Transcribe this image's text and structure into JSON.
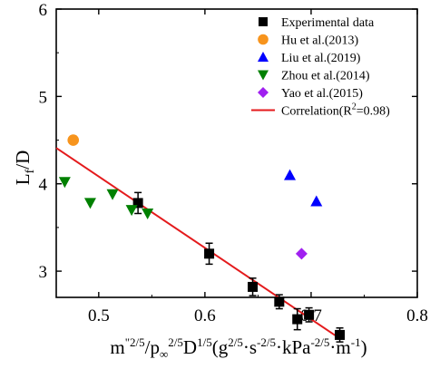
{
  "chart_data": {
    "type": "scatter",
    "xlabel": "m″²ᐟ⁵/p∞²ᐟ⁵D¹ᐟ⁵(g²ᐟ⁵·s⁻²ᐟ⁵·kPa⁻²ᐟ⁵·m⁻¹)",
    "ylabel": "L_f/D",
    "xlim": [
      0.46,
      0.8
    ],
    "ylim": [
      2.7,
      6
    ],
    "x_ticks": [
      "0.5",
      "0.6",
      "0.7",
      "0.8"
    ],
    "x_tick_values": [
      0.5,
      0.6,
      0.7,
      0.8
    ],
    "y_ticks": [
      "3",
      "4",
      "5",
      "6"
    ],
    "y_tick_values": [
      3,
      4,
      5,
      6
    ],
    "legend_position": "top-right",
    "series": [
      {
        "name": "Experimental data",
        "marker": "square",
        "color": "#000000",
        "points": [
          {
            "x": 0.537,
            "y": 3.78,
            "err": 0.12
          },
          {
            "x": 0.604,
            "y": 3.2,
            "err": 0.12
          },
          {
            "x": 0.645,
            "y": 2.82,
            "err": 0.1
          },
          {
            "x": 0.67,
            "y": 2.65,
            "err": 0.08
          },
          {
            "x": 0.687,
            "y": 2.45,
            "err": 0.12
          },
          {
            "x": 0.698,
            "y": 2.5,
            "err": 0.08
          },
          {
            "x": 0.727,
            "y": 2.27,
            "err": 0.08
          }
        ]
      },
      {
        "name": "Hu et al.(2013)",
        "marker": "circle",
        "color": "#f7941d",
        "points": [
          {
            "x": 0.476,
            "y": 4.5
          }
        ]
      },
      {
        "name": "Liu et al.(2019)",
        "marker": "triangle-up",
        "color": "#0000ff",
        "points": [
          {
            "x": 0.68,
            "y": 4.1
          },
          {
            "x": 0.705,
            "y": 3.8
          }
        ]
      },
      {
        "name": "Zhou et al.(2014)",
        "marker": "triangle-down",
        "color": "#008000",
        "points": [
          {
            "x": 0.468,
            "y": 4.02
          },
          {
            "x": 0.492,
            "y": 3.78
          },
          {
            "x": 0.513,
            "y": 3.88
          },
          {
            "x": 0.531,
            "y": 3.7
          },
          {
            "x": 0.546,
            "y": 3.66
          }
        ]
      },
      {
        "name": "Yao et al.(2015)",
        "marker": "diamond",
        "color": "#a020f0",
        "points": [
          {
            "x": 0.691,
            "y": 3.2
          }
        ]
      }
    ],
    "fit_line": {
      "name": "Correlation(R²=0.98)",
      "color": "#e41a1c",
      "x": [
        0.46,
        0.727
      ],
      "y": [
        4.41,
        2.23
      ]
    }
  }
}
